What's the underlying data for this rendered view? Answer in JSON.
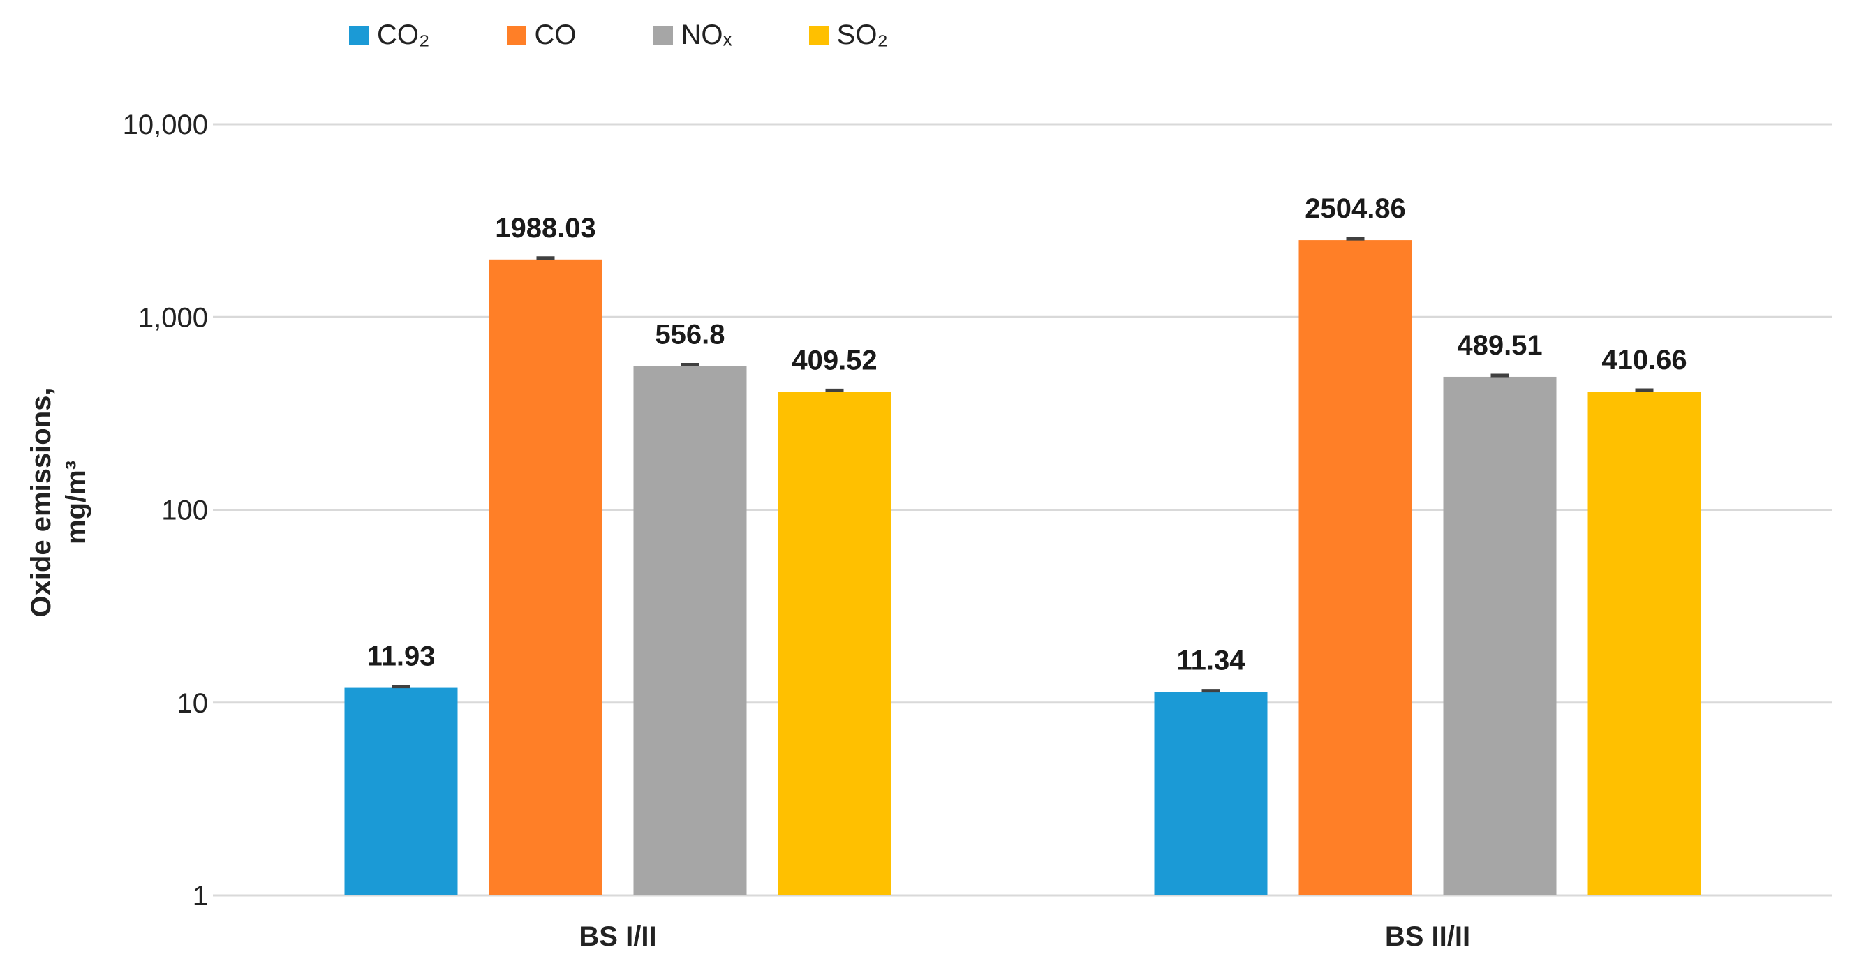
{
  "chart_data": {
    "type": "bar",
    "scale": "log",
    "categories": [
      "BS I/II",
      "BS II/II"
    ],
    "series": [
      {
        "name": "CO₂",
        "color": "#1B9AD6",
        "values": [
          11.93,
          11.34
        ],
        "labels": [
          "11.93",
          "11.34"
        ]
      },
      {
        "name": "CO",
        "color": "#FF7F27",
        "values": [
          1988.03,
          2504.86
        ],
        "labels": [
          "1988.03",
          "2504.86"
        ]
      },
      {
        "name": "NOₓ",
        "color": "#A6A6A6",
        "values": [
          556.8,
          489.51
        ],
        "labels": [
          "556.8",
          "489.51"
        ]
      },
      {
        "name": "SO₂",
        "color": "#FFC000",
        "values": [
          409.52,
          410.66
        ],
        "labels": [
          "409.52",
          "410.66"
        ]
      }
    ],
    "yticks": [
      1,
      10,
      100,
      1000,
      10000
    ],
    "ytick_labels": [
      "1",
      "10",
      "100",
      "1,000",
      "10,000"
    ],
    "ylim": [
      1,
      10000
    ],
    "ylabel_line1": "Oxide emissions,",
    "ylabel_line2": "mg/m³",
    "xlabel": "",
    "title": "",
    "grid": true,
    "legend_position": "top-left",
    "error_bars": true
  }
}
